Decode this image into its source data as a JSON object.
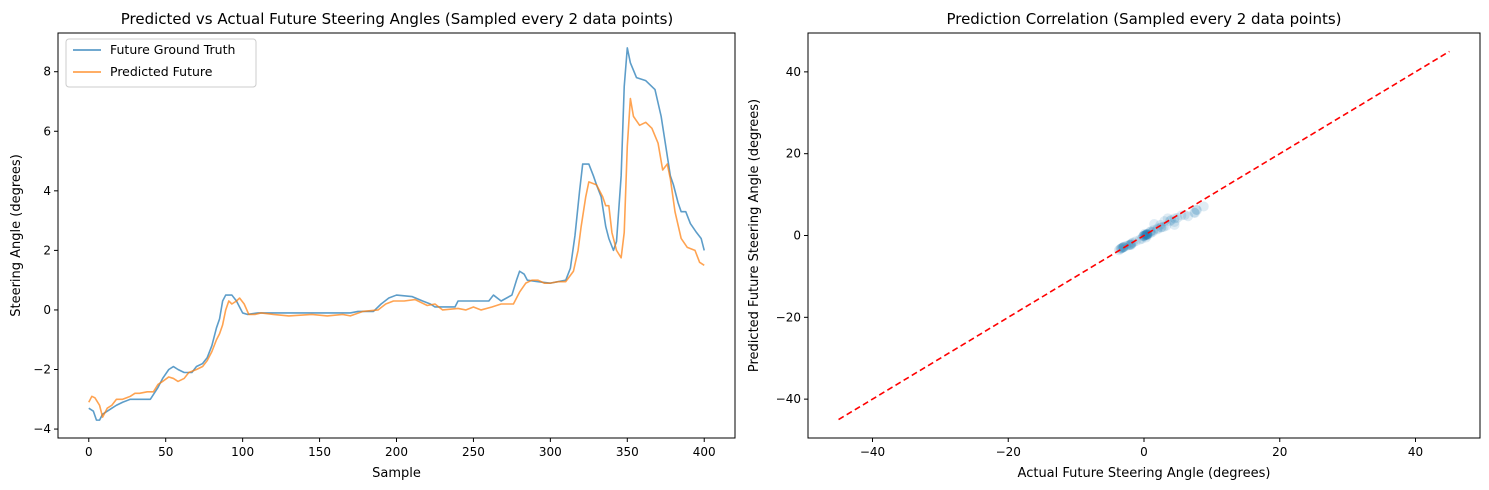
{
  "chart_data": [
    {
      "type": "line",
      "title": "Predicted vs Actual Future Steering Angles (Sampled every 2 data points)",
      "xlabel": "Sample",
      "ylabel": "Steering Angle (degrees)",
      "xlim": [
        -20,
        420
      ],
      "ylim": [
        -4.3,
        9.3
      ],
      "xticks": [
        0,
        50,
        100,
        150,
        200,
        250,
        300,
        350,
        400
      ],
      "yticks": [
        -4,
        -2,
        0,
        2,
        4,
        6,
        8
      ],
      "grid": false,
      "legend_position": "upper-left",
      "series": [
        {
          "name": "Future Ground Truth",
          "color": "#1f77b4",
          "points": [
            [
              0,
              -3.3
            ],
            [
              3,
              -3.4
            ],
            [
              5,
              -3.7
            ],
            [
              7,
              -3.7
            ],
            [
              9,
              -3.5
            ],
            [
              12,
              -3.4
            ],
            [
              15,
              -3.3
            ],
            [
              18,
              -3.2
            ],
            [
              22,
              -3.1
            ],
            [
              27,
              -3.0
            ],
            [
              35,
              -3.0
            ],
            [
              40,
              -3.0
            ],
            [
              45,
              -2.6
            ],
            [
              48,
              -2.3
            ],
            [
              52,
              -2.0
            ],
            [
              55,
              -1.9
            ],
            [
              58,
              -2.0
            ],
            [
              62,
              -2.1
            ],
            [
              67,
              -2.1
            ],
            [
              70,
              -1.9
            ],
            [
              74,
              -1.8
            ],
            [
              77,
              -1.6
            ],
            [
              80,
              -1.2
            ],
            [
              83,
              -0.6
            ],
            [
              85,
              -0.3
            ],
            [
              87,
              0.3
            ],
            [
              89,
              0.5
            ],
            [
              93,
              0.5
            ],
            [
              96,
              0.3
            ],
            [
              98,
              0.1
            ],
            [
              100,
              -0.1
            ],
            [
              103,
              -0.15
            ],
            [
              110,
              -0.1
            ],
            [
              130,
              -0.1
            ],
            [
              150,
              -0.1
            ],
            [
              170,
              -0.1
            ],
            [
              175,
              -0.05
            ],
            [
              185,
              -0.05
            ],
            [
              190,
              0.2
            ],
            [
              195,
              0.4
            ],
            [
              200,
              0.5
            ],
            [
              210,
              0.45
            ],
            [
              217,
              0.3
            ],
            [
              222,
              0.2
            ],
            [
              225,
              0.1
            ],
            [
              230,
              0.1
            ],
            [
              238,
              0.1
            ],
            [
              240,
              0.3
            ],
            [
              255,
              0.3
            ],
            [
              260,
              0.3
            ],
            [
              263,
              0.5
            ],
            [
              268,
              0.3
            ],
            [
              275,
              0.5
            ],
            [
              278,
              1.0
            ],
            [
              280,
              1.3
            ],
            [
              283,
              1.2
            ],
            [
              285,
              1.0
            ],
            [
              292,
              0.95
            ],
            [
              300,
              0.9
            ],
            [
              310,
              1.0
            ],
            [
              313,
              1.4
            ],
            [
              316,
              2.5
            ],
            [
              319,
              4.0
            ],
            [
              321,
              4.9
            ],
            [
              325,
              4.9
            ],
            [
              328,
              4.5
            ],
            [
              330,
              4.2
            ],
            [
              333,
              3.8
            ],
            [
              336,
              2.8
            ],
            [
              338,
              2.4
            ],
            [
              341,
              2.0
            ],
            [
              343,
              2.3
            ],
            [
              346,
              4.5
            ],
            [
              348,
              7.5
            ],
            [
              350,
              8.8
            ],
            [
              352,
              8.3
            ],
            [
              356,
              7.8
            ],
            [
              362,
              7.7
            ],
            [
              368,
              7.4
            ],
            [
              372,
              6.5
            ],
            [
              375,
              5.5
            ],
            [
              378,
              4.5
            ],
            [
              380,
              4.2
            ],
            [
              383,
              3.6
            ],
            [
              385,
              3.3
            ],
            [
              388,
              3.3
            ],
            [
              391,
              2.9
            ],
            [
              395,
              2.6
            ],
            [
              398,
              2.4
            ],
            [
              400,
              2.0
            ]
          ]
        },
        {
          "name": "Predicted Future",
          "color": "#ff7f0e",
          "points": [
            [
              0,
              -3.1
            ],
            [
              2,
              -2.9
            ],
            [
              4,
              -2.95
            ],
            [
              7,
              -3.2
            ],
            [
              9,
              -3.6
            ],
            [
              12,
              -3.3
            ],
            [
              15,
              -3.2
            ],
            [
              18,
              -3.0
            ],
            [
              22,
              -3.0
            ],
            [
              27,
              -2.9
            ],
            [
              30,
              -2.8
            ],
            [
              33,
              -2.8
            ],
            [
              38,
              -2.75
            ],
            [
              42,
              -2.75
            ],
            [
              45,
              -2.5
            ],
            [
              48,
              -2.4
            ],
            [
              52,
              -2.25
            ],
            [
              55,
              -2.3
            ],
            [
              58,
              -2.4
            ],
            [
              62,
              -2.3
            ],
            [
              65,
              -2.1
            ],
            [
              70,
              -2.0
            ],
            [
              74,
              -1.9
            ],
            [
              77,
              -1.7
            ],
            [
              80,
              -1.4
            ],
            [
              83,
              -1.0
            ],
            [
              85,
              -0.8
            ],
            [
              87,
              -0.5
            ],
            [
              89,
              0.0
            ],
            [
              91,
              0.3
            ],
            [
              93,
              0.2
            ],
            [
              96,
              0.3
            ],
            [
              98,
              0.4
            ],
            [
              101,
              0.2
            ],
            [
              104,
              -0.15
            ],
            [
              108,
              -0.15
            ],
            [
              112,
              -0.1
            ],
            [
              120,
              -0.15
            ],
            [
              130,
              -0.2
            ],
            [
              145,
              -0.15
            ],
            [
              155,
              -0.2
            ],
            [
              165,
              -0.15
            ],
            [
              170,
              -0.2
            ],
            [
              178,
              -0.05
            ],
            [
              188,
              0.0
            ],
            [
              193,
              0.2
            ],
            [
              198,
              0.3
            ],
            [
              205,
              0.3
            ],
            [
              212,
              0.35
            ],
            [
              220,
              0.15
            ],
            [
              225,
              0.2
            ],
            [
              230,
              0.0
            ],
            [
              240,
              0.05
            ],
            [
              245,
              0.0
            ],
            [
              250,
              0.1
            ],
            [
              255,
              0.0
            ],
            [
              262,
              0.1
            ],
            [
              268,
              0.2
            ],
            [
              276,
              0.2
            ],
            [
              280,
              0.6
            ],
            [
              284,
              0.9
            ],
            [
              288,
              1.0
            ],
            [
              292,
              1.0
            ],
            [
              296,
              0.9
            ],
            [
              300,
              0.9
            ],
            [
              305,
              0.95
            ],
            [
              310,
              0.95
            ],
            [
              315,
              1.3
            ],
            [
              318,
              2.0
            ],
            [
              320,
              2.8
            ],
            [
              323,
              3.8
            ],
            [
              325,
              4.3
            ],
            [
              330,
              4.2
            ],
            [
              334,
              3.8
            ],
            [
              336,
              3.5
            ],
            [
              338,
              3.5
            ],
            [
              340,
              2.6
            ],
            [
              343,
              2.0
            ],
            [
              346,
              1.75
            ],
            [
              348,
              2.6
            ],
            [
              350,
              5.5
            ],
            [
              352,
              7.1
            ],
            [
              354,
              6.5
            ],
            [
              358,
              6.2
            ],
            [
              362,
              6.3
            ],
            [
              366,
              6.1
            ],
            [
              370,
              5.6
            ],
            [
              373,
              4.7
            ],
            [
              376,
              4.9
            ],
            [
              378,
              4.4
            ],
            [
              381,
              3.3
            ],
            [
              385,
              2.4
            ],
            [
              389,
              2.1
            ],
            [
              394,
              2.0
            ],
            [
              397,
              1.6
            ],
            [
              400,
              1.5
            ]
          ]
        }
      ]
    },
    {
      "type": "scatter",
      "title": "Prediction Correlation (Sampled every 2 data points)",
      "xlabel": "Actual Future Steering Angle (degrees)",
      "ylabel": "Predicted Future Steering Angle (degrees)",
      "xlim": [
        -49.5,
        49.5
      ],
      "ylim": [
        -49.5,
        49.5
      ],
      "xticks": [
        -40,
        -20,
        0,
        20,
        40
      ],
      "yticks": [
        -40,
        -20,
        0,
        20,
        40
      ],
      "grid": false,
      "point_color": "#1f77b4",
      "reference_line": {
        "from": [
          -45,
          -45
        ],
        "to": [
          45,
          45
        ],
        "color": "#ff0000",
        "style": "dashed"
      },
      "points": [
        [
          -3.7,
          -3.6
        ],
        [
          -3.5,
          -3.3
        ],
        [
          -3.4,
          -3.2
        ],
        [
          -3.3,
          -3.1
        ],
        [
          -3.2,
          -3.0
        ],
        [
          -3.1,
          -2.95
        ],
        [
          -3.0,
          -2.9
        ],
        [
          -3.0,
          -2.8
        ],
        [
          -3.0,
          -2.75
        ],
        [
          -2.6,
          -2.5
        ],
        [
          -2.3,
          -2.4
        ],
        [
          -2.0,
          -2.25
        ],
        [
          -1.9,
          -2.3
        ],
        [
          -2.1,
          -2.3
        ],
        [
          -1.9,
          -2.1
        ],
        [
          -1.8,
          -1.9
        ],
        [
          -1.6,
          -1.7
        ],
        [
          -1.2,
          -1.4
        ],
        [
          -0.6,
          -1.0
        ],
        [
          -0.3,
          -0.8
        ],
        [
          0.3,
          -0.5
        ],
        [
          0.5,
          0.0
        ],
        [
          0.5,
          0.3
        ],
        [
          0.3,
          0.2
        ],
        [
          0.1,
          0.4
        ],
        [
          -0.1,
          -0.15
        ],
        [
          -0.1,
          -0.2
        ],
        [
          -0.05,
          -0.05
        ],
        [
          0.2,
          0.0
        ],
        [
          0.4,
          0.3
        ],
        [
          0.5,
          0.3
        ],
        [
          0.45,
          0.35
        ],
        [
          0.2,
          0.15
        ],
        [
          0.1,
          0.0
        ],
        [
          0.3,
          0.1
        ],
        [
          0.5,
          0.2
        ],
        [
          1.0,
          0.6
        ],
        [
          1.3,
          0.9
        ],
        [
          1.0,
          1.0
        ],
        [
          0.9,
          0.9
        ],
        [
          1.4,
          1.3
        ],
        [
          2.5,
          2.0
        ],
        [
          4.0,
          3.8
        ],
        [
          4.9,
          4.3
        ],
        [
          4.5,
          4.2
        ],
        [
          3.8,
          3.5
        ],
        [
          2.4,
          2.6
        ],
        [
          2.0,
          1.75
        ],
        [
          4.5,
          2.6
        ],
        [
          7.5,
          5.5
        ],
        [
          8.8,
          7.1
        ],
        [
          7.8,
          6.2
        ],
        [
          7.7,
          6.3
        ],
        [
          7.4,
          5.6
        ],
        [
          6.5,
          4.7
        ],
        [
          5.5,
          4.9
        ],
        [
          4.5,
          3.3
        ],
        [
          3.3,
          2.4
        ],
        [
          2.9,
          2.1
        ],
        [
          2.6,
          2.0
        ],
        [
          2.0,
          1.5
        ],
        [
          1.5,
          2.8
        ],
        [
          3.0,
          3.5
        ],
        [
          6.0,
          5.0
        ],
        [
          3.5,
          4.2
        ]
      ]
    }
  ]
}
